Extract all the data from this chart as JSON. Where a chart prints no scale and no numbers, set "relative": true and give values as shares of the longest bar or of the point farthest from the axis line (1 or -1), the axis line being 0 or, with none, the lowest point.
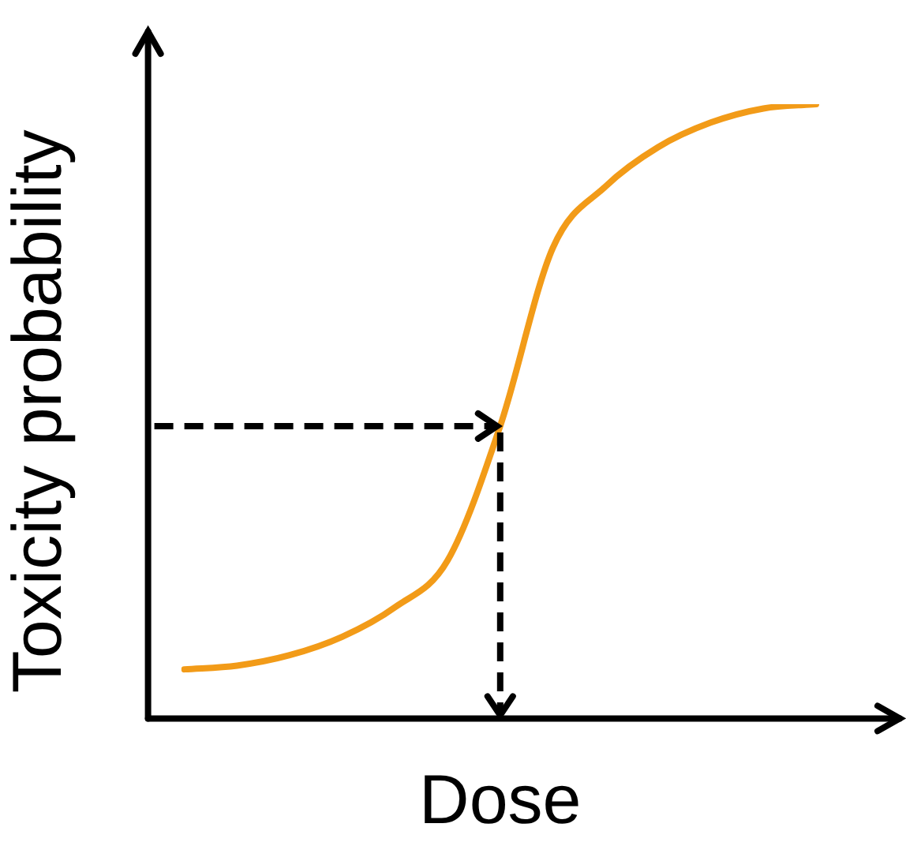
{
  "chart_data": {
    "type": "line",
    "xlabel": "Dose",
    "ylabel": "Toxicity probability",
    "relative": true,
    "categories": [
      null,
      null,
      null,
      null,
      null,
      null,
      null,
      null,
      null,
      null,
      null,
      null,
      null
    ],
    "series": [
      {
        "color": "#f29b18",
        "values": [
          0.08,
          0.086,
          0.103,
          0.133,
          0.181,
          0.257,
          0.476,
          0.766,
          0.866,
          0.93,
          0.97,
          0.993,
          1.0
        ]
      }
    ],
    "grid": false,
    "legend": false,
    "marker": "none",
    "line_style": "solid"
  }
}
